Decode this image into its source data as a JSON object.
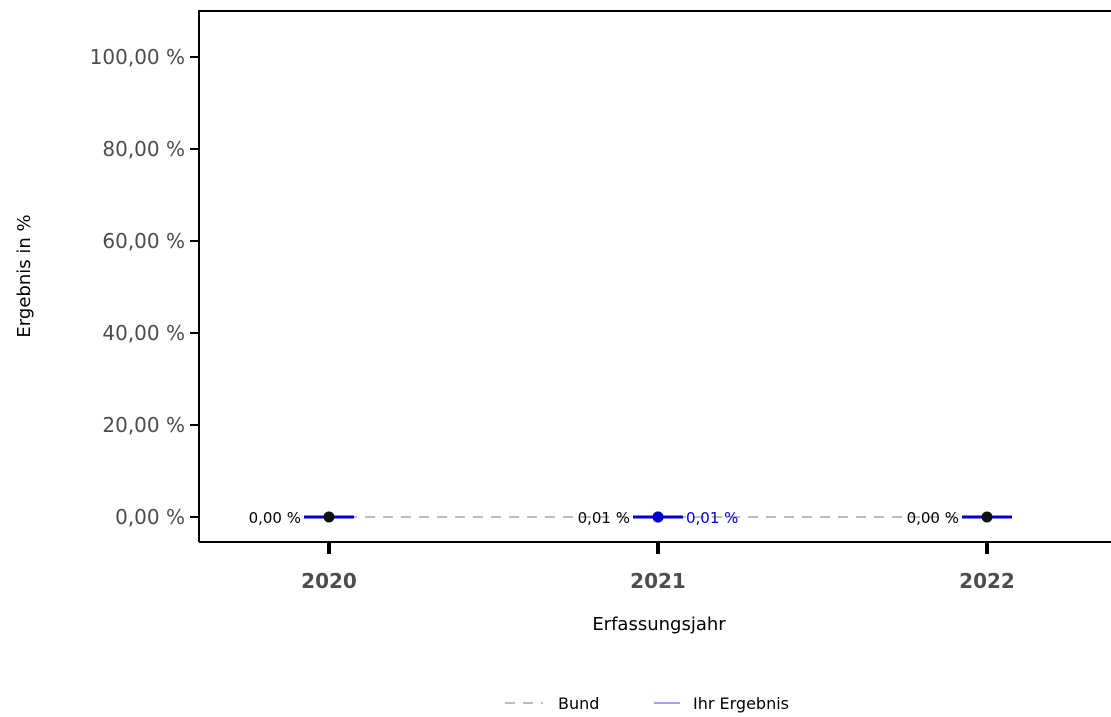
{
  "chart_data": {
    "type": "line",
    "xlabel": "Erfassungsjahr",
    "ylabel": "Ergebnis in %",
    "categories": [
      "2020",
      "2021",
      "2022"
    ],
    "ylim": [
      0,
      105
    ],
    "yticks": [
      0,
      20,
      40,
      60,
      80,
      100
    ],
    "ytick_labels": [
      "0,00 %",
      "20,00 %",
      "40,00 %",
      "60,00 %",
      "80,00 %",
      "100,00 %"
    ],
    "grid": false,
    "legend_position": "bottom",
    "series": [
      {
        "name": "Bund",
        "line_style": "dashed",
        "color": "#bdbdbd",
        "point_color": "#111111",
        "values": [
          0.0,
          0.01,
          0.0
        ],
        "labels": [
          "0,00 %",
          "0,01 %",
          "0,00 %"
        ]
      },
      {
        "name": "Ihr Ergebnis",
        "line_style": "solid",
        "color": "#0000cc",
        "legend_color": "#9f9fff",
        "values": [
          null,
          0.01,
          null
        ],
        "labels": [
          null,
          "0,01 %",
          null
        ]
      }
    ],
    "error_bar_color": "#0000cc"
  }
}
